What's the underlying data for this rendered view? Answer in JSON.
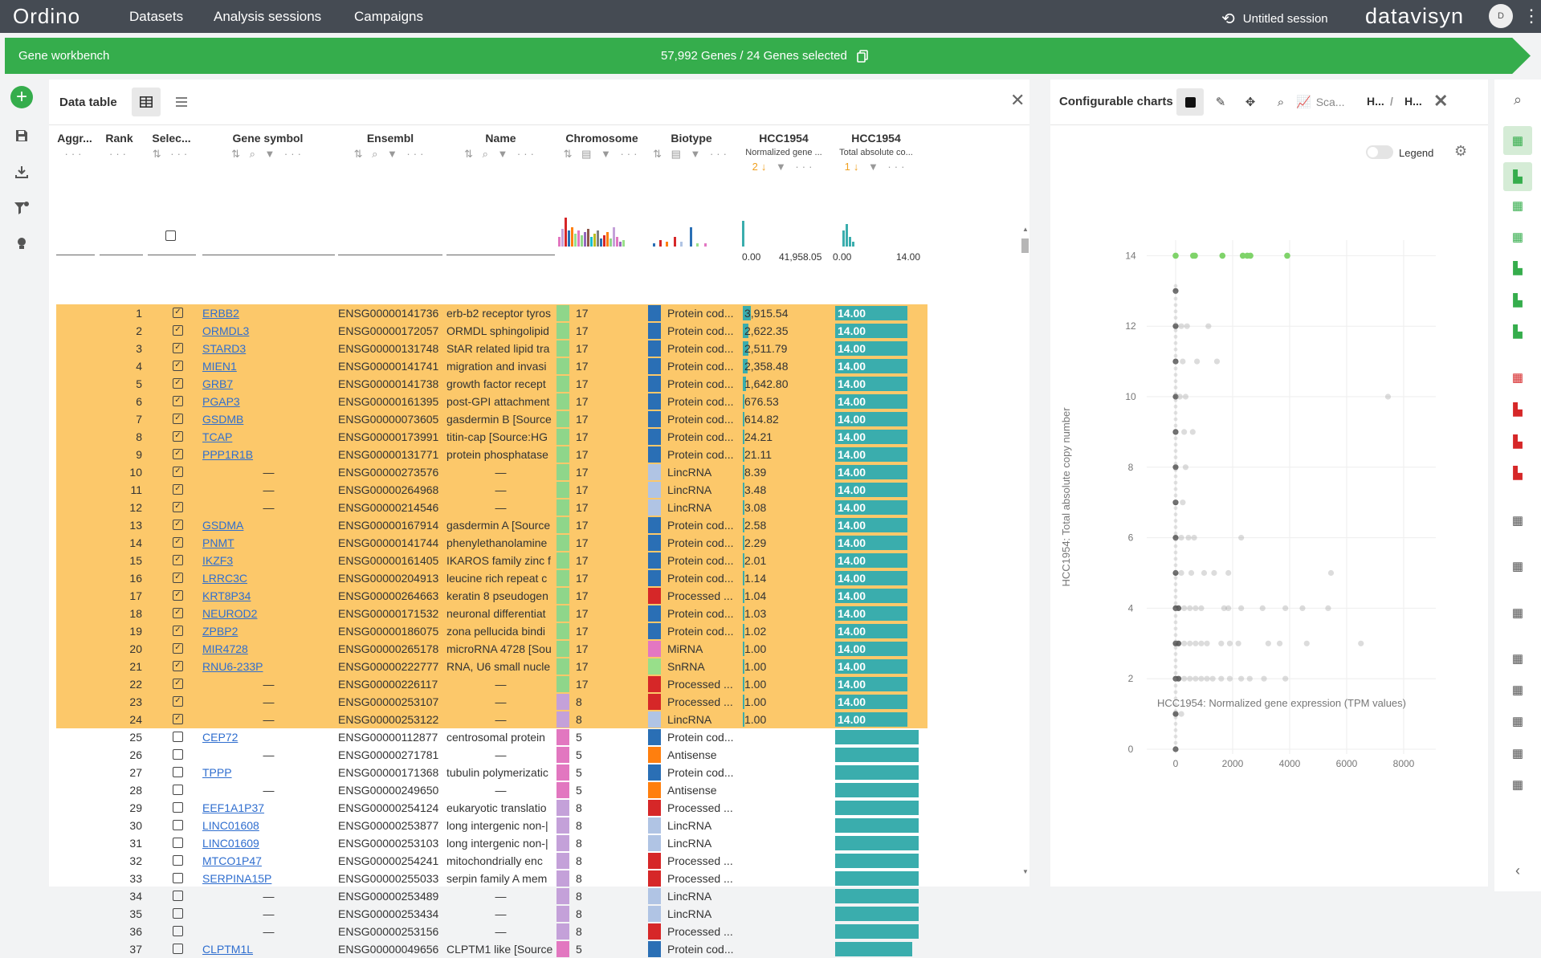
{
  "nav": {
    "logo": "Ordino",
    "items": [
      "Datasets",
      "Analysis sessions",
      "Campaigns"
    ],
    "session": "Untitled session",
    "brand": "datavisyn",
    "avatar": "D"
  },
  "banner": {
    "title": "Gene workbench",
    "count": "57,992 Genes / 24 Genes selected"
  },
  "table": {
    "title": "Data table",
    "columns": [
      {
        "label": "Aggr..."
      },
      {
        "label": "Rank"
      },
      {
        "label": "Selec..."
      },
      {
        "label": "Gene symbol"
      },
      {
        "label": "Ensembl"
      },
      {
        "label": "Name"
      },
      {
        "label": "Chromosome"
      },
      {
        "label": "Biotype"
      },
      {
        "label": "HCC1954",
        "sub": "Normalized gene ..."
      },
      {
        "label": "HCC1954",
        "sub": "Total absolute co..."
      }
    ],
    "expr_range": [
      "0.00",
      "41,958.05"
    ],
    "cn_range": [
      "0.00",
      "14.00"
    ],
    "rows": [
      {
        "rank": "1",
        "sel": true,
        "sym": "ERBB2",
        "ens": "ENSG00000141736",
        "name": "erb-b2 receptor tyros",
        "chr": "17",
        "bio": "Protein cod...",
        "expr": "3,915.54",
        "cn": "14.00"
      },
      {
        "rank": "2",
        "sel": true,
        "sym": "ORMDL3",
        "ens": "ENSG00000172057",
        "name": "ORMDL sphingolipid",
        "chr": "17",
        "bio": "Protein cod...",
        "expr": "2,622.35",
        "cn": "14.00"
      },
      {
        "rank": "3",
        "sel": true,
        "sym": "STARD3",
        "ens": "ENSG00000131748",
        "name": "StAR related lipid tra",
        "chr": "17",
        "bio": "Protein cod...",
        "expr": "2,511.79",
        "cn": "14.00"
      },
      {
        "rank": "4",
        "sel": true,
        "sym": "MIEN1",
        "ens": "ENSG00000141741",
        "name": "migration and invasi",
        "chr": "17",
        "bio": "Protein cod...",
        "expr": "2,358.48",
        "cn": "14.00"
      },
      {
        "rank": "5",
        "sel": true,
        "sym": "GRB7",
        "ens": "ENSG00000141738",
        "name": "growth factor recept",
        "chr": "17",
        "bio": "Protein cod...",
        "expr": "1,642.80",
        "cn": "14.00"
      },
      {
        "rank": "6",
        "sel": true,
        "sym": "PGAP3",
        "ens": "ENSG00000161395",
        "name": "post-GPI attachment",
        "chr": "17",
        "bio": "Protein cod...",
        "expr": "676.53",
        "cn": "14.00"
      },
      {
        "rank": "7",
        "sel": true,
        "sym": "GSDMB",
        "ens": "ENSG00000073605",
        "name": "gasdermin B [Source",
        "chr": "17",
        "bio": "Protein cod...",
        "expr": "614.82",
        "cn": "14.00"
      },
      {
        "rank": "8",
        "sel": true,
        "sym": "TCAP",
        "ens": "ENSG00000173991",
        "name": "titin-cap [Source:HG",
        "chr": "17",
        "bio": "Protein cod...",
        "expr": "24.21",
        "cn": "14.00"
      },
      {
        "rank": "9",
        "sel": true,
        "sym": "PPP1R1B",
        "ens": "ENSG00000131771",
        "name": "protein phosphatase",
        "chr": "17",
        "bio": "Protein cod...",
        "expr": "21.11",
        "cn": "14.00"
      },
      {
        "rank": "10",
        "sel": true,
        "sym": "—",
        "ens": "ENSG00000273576",
        "name": "—",
        "chr": "17",
        "bio": "LincRNA",
        "expr": "8.39",
        "cn": "14.00"
      },
      {
        "rank": "11",
        "sel": true,
        "sym": "—",
        "ens": "ENSG00000264968",
        "name": "—",
        "chr": "17",
        "bio": "LincRNA",
        "expr": "3.48",
        "cn": "14.00"
      },
      {
        "rank": "12",
        "sel": true,
        "sym": "—",
        "ens": "ENSG00000214546",
        "name": "—",
        "chr": "17",
        "bio": "LincRNA",
        "expr": "3.08",
        "cn": "14.00"
      },
      {
        "rank": "13",
        "sel": true,
        "sym": "GSDMA",
        "ens": "ENSG00000167914",
        "name": "gasdermin A [Source",
        "chr": "17",
        "bio": "Protein cod...",
        "expr": "2.58",
        "cn": "14.00"
      },
      {
        "rank": "14",
        "sel": true,
        "sym": "PNMT",
        "ens": "ENSG00000141744",
        "name": "phenylethanolamine",
        "chr": "17",
        "bio": "Protein cod...",
        "expr": "2.29",
        "cn": "14.00"
      },
      {
        "rank": "15",
        "sel": true,
        "sym": "IKZF3",
        "ens": "ENSG00000161405",
        "name": "IKAROS family zinc f",
        "chr": "17",
        "bio": "Protein cod...",
        "expr": "2.01",
        "cn": "14.00"
      },
      {
        "rank": "16",
        "sel": true,
        "sym": "LRRC3C",
        "ens": "ENSG00000204913",
        "name": "leucine rich repeat c",
        "chr": "17",
        "bio": "Protein cod...",
        "expr": "1.14",
        "cn": "14.00"
      },
      {
        "rank": "17",
        "sel": true,
        "sym": "KRT8P34",
        "ens": "ENSG00000264663",
        "name": "keratin 8 pseudogen",
        "chr": "17",
        "bio": "Processed ...",
        "expr": "1.04",
        "cn": "14.00"
      },
      {
        "rank": "18",
        "sel": true,
        "sym": "NEUROD2",
        "ens": "ENSG00000171532",
        "name": "neuronal differentiat",
        "chr": "17",
        "bio": "Protein cod...",
        "expr": "1.03",
        "cn": "14.00"
      },
      {
        "rank": "19",
        "sel": true,
        "sym": "ZPBP2",
        "ens": "ENSG00000186075",
        "name": "zona pellucida bindi",
        "chr": "17",
        "bio": "Protein cod...",
        "expr": "1.02",
        "cn": "14.00"
      },
      {
        "rank": "20",
        "sel": true,
        "sym": "MIR4728",
        "ens": "ENSG00000265178",
        "name": "microRNA 4728 [Sou",
        "chr": "17",
        "bio": "MiRNA",
        "expr": "1.00",
        "cn": "14.00"
      },
      {
        "rank": "21",
        "sel": true,
        "sym": "RNU6-233P",
        "ens": "ENSG00000222777",
        "name": "RNA, U6 small nucle",
        "chr": "17",
        "bio": "SnRNA",
        "expr": "1.00",
        "cn": "14.00"
      },
      {
        "rank": "22",
        "sel": true,
        "sym": "—",
        "ens": "ENSG00000226117",
        "name": "—",
        "chr": "17",
        "bio": "Processed ...",
        "expr": "1.00",
        "cn": "14.00"
      },
      {
        "rank": "23",
        "sel": true,
        "sym": "—",
        "ens": "ENSG00000253107",
        "name": "—",
        "chr": "8",
        "bio": "Processed ...",
        "expr": "1.00",
        "cn": "14.00"
      },
      {
        "rank": "24",
        "sel": true,
        "sym": "—",
        "ens": "ENSG00000253122",
        "name": "—",
        "chr": "8",
        "bio": "LincRNA",
        "expr": "1.00",
        "cn": "14.00"
      },
      {
        "rank": "25",
        "sel": false,
        "sym": "CEP72",
        "ens": "ENSG00000112877",
        "name": "centrosomal protein",
        "chr": "5",
        "bio": "Protein cod...",
        "expr": "",
        "cn": ""
      },
      {
        "rank": "26",
        "sel": false,
        "sym": "—",
        "ens": "ENSG00000271781",
        "name": "—",
        "chr": "5",
        "bio": "Antisense",
        "expr": "",
        "cn": ""
      },
      {
        "rank": "27",
        "sel": false,
        "sym": "TPPP",
        "ens": "ENSG00000171368",
        "name": "tubulin polymerizatic",
        "chr": "5",
        "bio": "Protein cod...",
        "expr": "",
        "cn": ""
      },
      {
        "rank": "28",
        "sel": false,
        "sym": "—",
        "ens": "ENSG00000249650",
        "name": "—",
        "chr": "5",
        "bio": "Antisense",
        "expr": "",
        "cn": ""
      },
      {
        "rank": "29",
        "sel": false,
        "sym": "EEF1A1P37",
        "ens": "ENSG00000254124",
        "name": "eukaryotic translatio",
        "chr": "8",
        "bio": "Processed ...",
        "expr": "",
        "cn": ""
      },
      {
        "rank": "30",
        "sel": false,
        "sym": "LINC01608",
        "ens": "ENSG00000253877",
        "name": "long intergenic non-|",
        "chr": "8",
        "bio": "LincRNA",
        "expr": "",
        "cn": ""
      },
      {
        "rank": "31",
        "sel": false,
        "sym": "LINC01609",
        "ens": "ENSG00000253103",
        "name": "long intergenic non-|",
        "chr": "8",
        "bio": "LincRNA",
        "expr": "",
        "cn": ""
      },
      {
        "rank": "32",
        "sel": false,
        "sym": "MTCO1P47",
        "ens": "ENSG00000254241",
        "name": "mitochondrially enc",
        "chr": "8",
        "bio": "Processed ...",
        "expr": "",
        "cn": ""
      },
      {
        "rank": "33",
        "sel": false,
        "sym": "SERPINA15P",
        "ens": "ENSG00000255033",
        "name": "serpin family A mem",
        "chr": "8",
        "bio": "Processed ...",
        "expr": "",
        "cn": ""
      },
      {
        "rank": "34",
        "sel": false,
        "sym": "—",
        "ens": "ENSG00000253489",
        "name": "—",
        "chr": "8",
        "bio": "LincRNA",
        "expr": "",
        "cn": ""
      },
      {
        "rank": "35",
        "sel": false,
        "sym": "—",
        "ens": "ENSG00000253434",
        "name": "—",
        "chr": "8",
        "bio": "LincRNA",
        "expr": "",
        "cn": ""
      },
      {
        "rank": "36",
        "sel": false,
        "sym": "—",
        "ens": "ENSG00000253156",
        "name": "—",
        "chr": "8",
        "bio": "Processed ...",
        "expr": "",
        "cn": ""
      },
      {
        "rank": "37",
        "sel": false,
        "sym": "CLPTM1L",
        "ens": "ENSG00000049656",
        "name": "CLPTM1 like [Source",
        "chr": "5",
        "bio": "Protein cod...",
        "expr": "",
        "cn": ""
      }
    ]
  },
  "colors": {
    "accent": "#35ad4c",
    "selected_row": "#fcc86a",
    "bar": "#3aadad",
    "chr17": "#8fd68a",
    "chr8": "#c4a1d9",
    "chr5": "#e277c0",
    "protein": "#2a6fb5",
    "lincrna": "#b0c4e4",
    "processed": "#d62728",
    "antisense": "#ff7f0e",
    "mirna": "#e377c2",
    "snrna": "#98df8a"
  },
  "charts": {
    "title": "Configurable charts",
    "tab1": "Sca...",
    "tab2": "H...",
    "sep": "/",
    "tab3": "H...",
    "legend_label": "Legend",
    "ylabel": "HCC1954: Total absolute copy number",
    "xlabel": "HCC1954: Normalized gene expression (TPM values)"
  },
  "chart_data": {
    "type": "scatter",
    "xlabel": "HCC1954: Normalized gene expression (TPM values)",
    "ylabel": "HCC1954: Total absolute copy number",
    "xlim": [
      0,
      8800
    ],
    "ylim": [
      -0.3,
      14.5
    ],
    "xticks": [
      "0",
      "2000",
      "4000",
      "6000",
      "8000"
    ],
    "yticks": [
      "0",
      "2",
      "4",
      "6",
      "8",
      "10",
      "12",
      "14"
    ],
    "selected": [
      [
        0,
        14
      ],
      [
        614,
        14
      ],
      [
        676,
        14
      ],
      [
        1642,
        14
      ],
      [
        2358,
        14
      ],
      [
        2511,
        14
      ],
      [
        2622,
        14
      ],
      [
        3915,
        14
      ]
    ],
    "points": [
      [
        0,
        13
      ],
      [
        0,
        12
      ],
      [
        200,
        12
      ],
      [
        400,
        12
      ],
      [
        1150,
        12
      ],
      [
        0,
        11
      ],
      [
        250,
        11
      ],
      [
        750,
        11
      ],
      [
        1450,
        11
      ],
      [
        0,
        10
      ],
      [
        150,
        10
      ],
      [
        350,
        10
      ],
      [
        7450,
        10
      ],
      [
        0,
        9
      ],
      [
        300,
        9
      ],
      [
        600,
        9
      ],
      [
        0,
        8
      ],
      [
        350,
        8
      ],
      [
        0,
        7
      ],
      [
        250,
        7
      ],
      [
        0,
        6
      ],
      [
        200,
        6
      ],
      [
        450,
        6
      ],
      [
        650,
        6
      ],
      [
        2300,
        6
      ],
      [
        0,
        5
      ],
      [
        200,
        5
      ],
      [
        550,
        5
      ],
      [
        1000,
        5
      ],
      [
        1350,
        5
      ],
      [
        1850,
        5
      ],
      [
        5450,
        5
      ],
      [
        0,
        4
      ],
      [
        100,
        4
      ],
      [
        300,
        4
      ],
      [
        500,
        4
      ],
      [
        700,
        4
      ],
      [
        900,
        4
      ],
      [
        1700,
        4
      ],
      [
        1850,
        4
      ],
      [
        2300,
        4
      ],
      [
        3050,
        4
      ],
      [
        3850,
        4
      ],
      [
        4450,
        4
      ],
      [
        5350,
        4
      ],
      [
        0,
        3
      ],
      [
        100,
        3
      ],
      [
        300,
        3
      ],
      [
        500,
        3
      ],
      [
        700,
        3
      ],
      [
        900,
        3
      ],
      [
        1100,
        3
      ],
      [
        1600,
        3
      ],
      [
        1900,
        3
      ],
      [
        2200,
        3
      ],
      [
        3250,
        3
      ],
      [
        3650,
        3
      ],
      [
        4600,
        3
      ],
      [
        6500,
        3
      ],
      [
        0,
        2
      ],
      [
        100,
        2
      ],
      [
        300,
        2
      ],
      [
        500,
        2
      ],
      [
        700,
        2
      ],
      [
        900,
        2
      ],
      [
        1100,
        2
      ],
      [
        1300,
        2
      ],
      [
        1600,
        2
      ],
      [
        1900,
        2
      ],
      [
        2300,
        2
      ],
      [
        2600,
        2
      ],
      [
        3100,
        2
      ],
      [
        3850,
        2
      ],
      [
        0,
        1
      ],
      [
        200,
        1
      ],
      [
        0,
        0
      ]
    ]
  }
}
